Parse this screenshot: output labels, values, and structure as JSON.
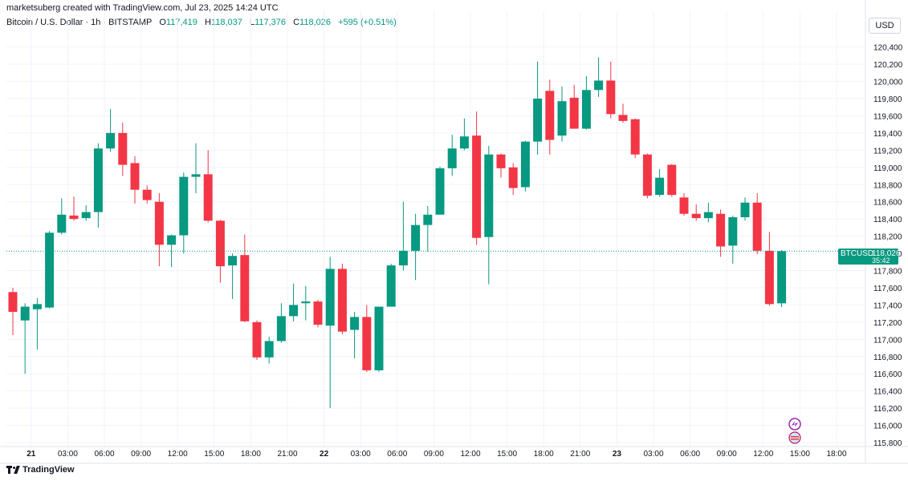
{
  "header": {
    "credit": "marketsuberg created with TradingView.com, Jul 23, 2025 14:24 UTC",
    "symbol": "Bitcoin / U.S. Dollar · 1h · BITSTAMP",
    "o_label": "O",
    "o_value": "117,419",
    "h_label": "H",
    "h_value": "118,037",
    "l_label": "L",
    "l_value": "117,376",
    "c_label": "C",
    "c_value": "118,026",
    "change": "+595 (+0.51%)"
  },
  "currency": "USD",
  "price_tag": {
    "symbol": "BTCUSD",
    "price": "118,026",
    "countdown": "35:42"
  },
  "footer": {
    "brand": "TradingView"
  },
  "colors": {
    "up": "#089981",
    "down": "#f23645",
    "last_line": "#089981"
  },
  "chart_data": {
    "type": "candlestick",
    "ylim": [
      115700,
      120600
    ],
    "y_ticks": [
      115800,
      116000,
      116200,
      116400,
      116600,
      116800,
      117000,
      117200,
      117400,
      117600,
      117800,
      118000,
      118200,
      118400,
      118600,
      118800,
      119000,
      119200,
      119400,
      119600,
      119800,
      120000,
      120200,
      120400
    ],
    "y_tick_labels": [
      "115,800",
      "116,000",
      "116,200",
      "116,400",
      "116,600",
      "116,800",
      "117,000",
      "117,200",
      "117,400",
      "117,600",
      "117,800",
      "118,000",
      "118,200",
      "118,400",
      "118,600",
      "118,800",
      "119,000",
      "119,200",
      "119,400",
      "119,600",
      "119,800",
      "120,000",
      "120,200",
      "120,400"
    ],
    "x_ticks": [
      {
        "index": 1.5,
        "label": "21"
      },
      {
        "index": 4.5,
        "label": "03:00"
      },
      {
        "index": 7.5,
        "label": "06:00"
      },
      {
        "index": 10.5,
        "label": "09:00"
      },
      {
        "index": 13.5,
        "label": "12:00"
      },
      {
        "index": 16.5,
        "label": "15:00"
      },
      {
        "index": 19.5,
        "label": "18:00"
      },
      {
        "index": 22.5,
        "label": "21:00"
      },
      {
        "index": 25.5,
        "label": "22"
      },
      {
        "index": 28.5,
        "label": "03:00"
      },
      {
        "index": 31.5,
        "label": "06:00"
      },
      {
        "index": 34.5,
        "label": "09:00"
      },
      {
        "index": 37.5,
        "label": "12:00"
      },
      {
        "index": 40.5,
        "label": "15:00"
      },
      {
        "index": 43.5,
        "label": "18:00"
      },
      {
        "index": 46.5,
        "label": "21:00"
      },
      {
        "index": 49.5,
        "label": "23"
      },
      {
        "index": 52.5,
        "label": "03:00"
      },
      {
        "index": 55.5,
        "label": "06:00"
      },
      {
        "index": 58.5,
        "label": "09:00"
      },
      {
        "index": 61.5,
        "label": "12:00"
      },
      {
        "index": 64.5,
        "label": "15:00"
      },
      {
        "index": 67.5,
        "label": "18:00"
      }
    ],
    "last_price": 118026,
    "candles": [
      {
        "o": 117550,
        "h": 117600,
        "l": 117050,
        "c": 117320
      },
      {
        "o": 117220,
        "h": 117420,
        "l": 116600,
        "c": 117380
      },
      {
        "o": 117350,
        "h": 117480,
        "l": 116880,
        "c": 117410
      },
      {
        "o": 117370,
        "h": 118260,
        "l": 117360,
        "c": 118240
      },
      {
        "o": 118240,
        "h": 118640,
        "l": 118220,
        "c": 118450
      },
      {
        "o": 118440,
        "h": 118660,
        "l": 118380,
        "c": 118400
      },
      {
        "o": 118410,
        "h": 118560,
        "l": 118380,
        "c": 118480
      },
      {
        "o": 118480,
        "h": 119280,
        "l": 118300,
        "c": 119220
      },
      {
        "o": 119220,
        "h": 119680,
        "l": 119180,
        "c": 119400
      },
      {
        "o": 119400,
        "h": 119520,
        "l": 118900,
        "c": 119030
      },
      {
        "o": 119050,
        "h": 119130,
        "l": 118580,
        "c": 118740
      },
      {
        "o": 118740,
        "h": 118790,
        "l": 118580,
        "c": 118620
      },
      {
        "o": 118600,
        "h": 118700,
        "l": 117850,
        "c": 118100
      },
      {
        "o": 118100,
        "h": 118220,
        "l": 117840,
        "c": 118210
      },
      {
        "o": 118210,
        "h": 118940,
        "l": 118000,
        "c": 118890
      },
      {
        "o": 118890,
        "h": 119280,
        "l": 118700,
        "c": 118920
      },
      {
        "o": 118920,
        "h": 119200,
        "l": 118360,
        "c": 118380
      },
      {
        "o": 118380,
        "h": 118390,
        "l": 117660,
        "c": 117850
      },
      {
        "o": 117860,
        "h": 118000,
        "l": 117470,
        "c": 117970
      },
      {
        "o": 117980,
        "h": 118220,
        "l": 117200,
        "c": 117210
      },
      {
        "o": 117200,
        "h": 117220,
        "l": 116760,
        "c": 116790
      },
      {
        "o": 116790,
        "h": 117030,
        "l": 116720,
        "c": 116980
      },
      {
        "o": 116980,
        "h": 117420,
        "l": 116960,
        "c": 117270
      },
      {
        "o": 117270,
        "h": 117650,
        "l": 117210,
        "c": 117400
      },
      {
        "o": 117420,
        "h": 117620,
        "l": 117220,
        "c": 117440
      },
      {
        "o": 117440,
        "h": 117460,
        "l": 117140,
        "c": 117170
      },
      {
        "o": 117160,
        "h": 117960,
        "l": 116200,
        "c": 117820
      },
      {
        "o": 117820,
        "h": 117880,
        "l": 117060,
        "c": 117090
      },
      {
        "o": 117110,
        "h": 117320,
        "l": 116780,
        "c": 117260
      },
      {
        "o": 117260,
        "h": 117400,
        "l": 116620,
        "c": 116640
      },
      {
        "o": 116640,
        "h": 117380,
        "l": 116620,
        "c": 117380
      },
      {
        "o": 117380,
        "h": 117880,
        "l": 117380,
        "c": 117860
      },
      {
        "o": 117860,
        "h": 118600,
        "l": 117800,
        "c": 118030
      },
      {
        "o": 118030,
        "h": 118460,
        "l": 117690,
        "c": 118330
      },
      {
        "o": 118330,
        "h": 118550,
        "l": 118020,
        "c": 118450
      },
      {
        "o": 118450,
        "h": 119010,
        "l": 118450,
        "c": 118990
      },
      {
        "o": 118990,
        "h": 119380,
        "l": 118900,
        "c": 119220
      },
      {
        "o": 119220,
        "h": 119570,
        "l": 119200,
        "c": 119360
      },
      {
        "o": 119370,
        "h": 119650,
        "l": 118100,
        "c": 118180
      },
      {
        "o": 118190,
        "h": 119250,
        "l": 117640,
        "c": 119150
      },
      {
        "o": 119150,
        "h": 119160,
        "l": 118880,
        "c": 118990
      },
      {
        "o": 119000,
        "h": 119050,
        "l": 118680,
        "c": 118760
      },
      {
        "o": 118770,
        "h": 119310,
        "l": 118720,
        "c": 119300
      },
      {
        "o": 119300,
        "h": 120230,
        "l": 119150,
        "c": 119800
      },
      {
        "o": 119890,
        "h": 120020,
        "l": 119150,
        "c": 119320
      },
      {
        "o": 119370,
        "h": 119940,
        "l": 119300,
        "c": 119770
      },
      {
        "o": 119810,
        "h": 119960,
        "l": 119450,
        "c": 119450
      },
      {
        "o": 119450,
        "h": 120060,
        "l": 119440,
        "c": 119900
      },
      {
        "o": 119900,
        "h": 120280,
        "l": 119820,
        "c": 120010
      },
      {
        "o": 120010,
        "h": 120230,
        "l": 119570,
        "c": 119620
      },
      {
        "o": 119610,
        "h": 119740,
        "l": 119520,
        "c": 119540
      },
      {
        "o": 119560,
        "h": 119570,
        "l": 119110,
        "c": 119150
      },
      {
        "o": 119150,
        "h": 119160,
        "l": 118640,
        "c": 118670
      },
      {
        "o": 118680,
        "h": 118980,
        "l": 118660,
        "c": 118880
      },
      {
        "o": 119030,
        "h": 119040,
        "l": 118660,
        "c": 118680
      },
      {
        "o": 118650,
        "h": 118700,
        "l": 118440,
        "c": 118460
      },
      {
        "o": 118460,
        "h": 118570,
        "l": 118380,
        "c": 118410
      },
      {
        "o": 118410,
        "h": 118590,
        "l": 118360,
        "c": 118480
      },
      {
        "o": 118460,
        "h": 118510,
        "l": 117960,
        "c": 118080
      },
      {
        "o": 118090,
        "h": 118440,
        "l": 117880,
        "c": 118420
      },
      {
        "o": 118420,
        "h": 118650,
        "l": 118380,
        "c": 118590
      },
      {
        "o": 118590,
        "h": 118700,
        "l": 117990,
        "c": 118030
      },
      {
        "o": 118030,
        "h": 118250,
        "l": 117390,
        "c": 117410
      },
      {
        "o": 117419,
        "h": 118037,
        "l": 117376,
        "c": 118026
      }
    ]
  }
}
